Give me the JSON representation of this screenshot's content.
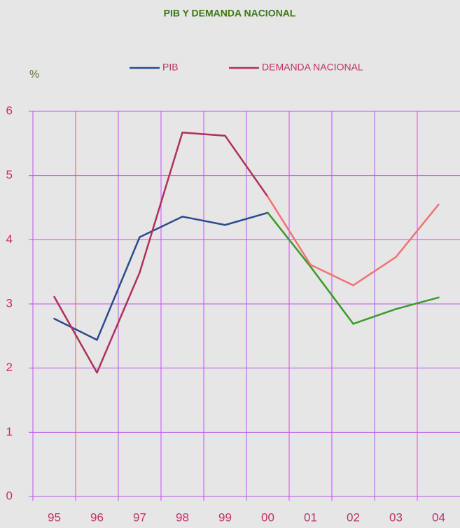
{
  "chart_data": {
    "type": "line",
    "title": "PIB Y DEMANDA NACIONAL",
    "y_label": "%",
    "categories": [
      "95",
      "96",
      "97",
      "98",
      "99",
      "00",
      "01",
      "02",
      "03",
      "04"
    ],
    "series": [
      {
        "name": "PIB",
        "color": "#2e4a8e",
        "segment_colors": [
          "#2e4a8e",
          "#2e4a8e",
          "#2e4a8e",
          "#2e4a8e",
          "#2e4a8e",
          "#3a9a2a",
          "#3a9a2a",
          "#3a9a2a",
          "#3a9a2a"
        ],
        "values": [
          2.77,
          2.44,
          4.04,
          4.36,
          4.23,
          4.42,
          3.58,
          2.69,
          2.92,
          3.1
        ]
      },
      {
        "name": "DEMANDA NACIONAL",
        "color": "#b0305a",
        "segment_colors": [
          "#b0305a",
          "#b0305a",
          "#b0305a",
          "#b0305a",
          "#b0305a",
          "#f27272",
          "#f27272",
          "#f27272",
          "#f27272"
        ],
        "values": [
          3.11,
          1.93,
          3.49,
          5.67,
          5.62,
          4.67,
          3.61,
          3.29,
          3.73,
          4.55
        ]
      }
    ],
    "ylim": [
      0,
      6
    ],
    "yticks": [
      0,
      1,
      2,
      3,
      4,
      5,
      6
    ],
    "grid": true,
    "grid_color": "#c050f0",
    "legend": "top"
  }
}
